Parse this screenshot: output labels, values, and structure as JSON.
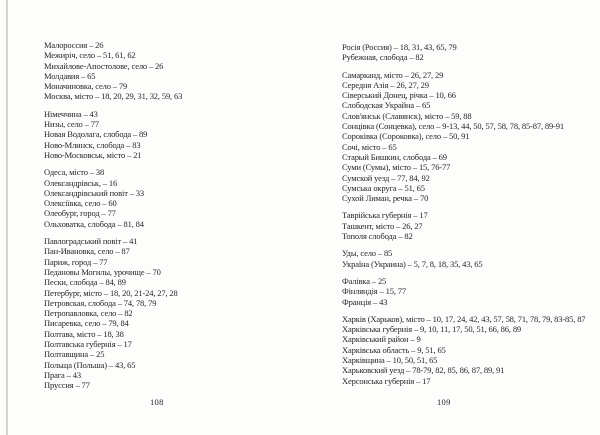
{
  "colors": {
    "background": "#fdfdfc",
    "text": "#262626",
    "scan_edge": "#d4d4d1"
  },
  "left_page": {
    "page_number": "108",
    "groups": [
      [
        "Малороссия – 26",
        "Межиріч, село – 51, 61, 62",
        "Михайлове-Апостолове, село – 26",
        "Молдавия – 65",
        "Моначиновка, село – 79",
        "Москва, місто – 18, 20, 29, 31, 32, 59, 63"
      ],
      [
        "Німеччина – 43",
        "Низы, село – 77",
        "Новая Водолага, слобода – 89",
        "Ново-Млинск, слобода – 83",
        "Ново-Московськ, місто – 21"
      ],
      [
        "Одеса, місто – 38",
        "Олександрівськ, – 16",
        "Олександрівський повіт – 33",
        "Олексіївка, село – 60",
        "Олеобург, город – 77",
        "Ольховатка, слобода – 81, 84"
      ],
      [
        "Павлоградський повіт – 41",
        "Пан-Ивановка, село – 87",
        "Париж, город – 77",
        "Педановы Могилы, урочище – 70",
        "Пески, слобода – 84, 89",
        "Петербург, місто – 18, 20, 21-24, 27, 28",
        "Петровская, слобода – 74, 78, 79",
        "Петропавловка, село – 82",
        "Писаревка, село – 79, 84",
        "Полтава, місто – 18, 38",
        "Полтавська губернія – 17",
        "Полтавщина – 25",
        "Польща (Польша) – 43, 65",
        "Прага – 43",
        "Пруссия – 77"
      ]
    ]
  },
  "right_page": {
    "page_number": "109",
    "groups": [
      [
        "Росія (Россия) – 18, 31, 43, 65, 79",
        "Рубежная, слобода – 82"
      ],
      [
        "Самарканд, місто – 26, 27, 29",
        "Середня Азія – 26, 27, 29",
        "Сіверський Донец, річка – 10, 66",
        "Слободская Украйна – 65",
        "Слов'янськ (Славянск), місто – 59, 88",
        "Сонцівка (Сонцевка), село – 9-13, 44, 50, 57, 58, 78, 85-87, 89-91",
        "Сороківка (Сороковка), село – 50, 91",
        "Сочі, місто – 65",
        "Старый Бишкин, слобода – 69",
        "Суми (Сумы), місто – 15, 76-77",
        "Сумской уезд – 77, 84, 92",
        "Сумська округа – 51, 65",
        "Сухой Лиман, речка – 70"
      ],
      [
        "Таврійська губернія – 17",
        "Ташкент, місто – 26, 27",
        "Тополя слобода – 82"
      ],
      [
        "Уды, село – 85",
        "Україна (Украина) – 5, 7, 8, 18, 35, 43, 65"
      ],
      [
        "Фалівка – 25",
        "Фінляндія – 15, 77",
        "Франція – 43"
      ],
      [
        "Харків (Харьков), місто – 10, 17, 24, 42, 43, 57, 58, 71, 78, 79, 83-85, 87",
        "Харківська губернія – 9, 10, 11, 17, 50, 51, 66, 86, 89",
        "Харківський район – 9",
        "Харківська область – 9, 51, 65",
        "Харківщина – 10, 50, 51, 65",
        "Харьковский уезд – 78-79, 82, 85, 86, 87, 89, 91",
        "Херсонська губернія – 17"
      ]
    ]
  }
}
